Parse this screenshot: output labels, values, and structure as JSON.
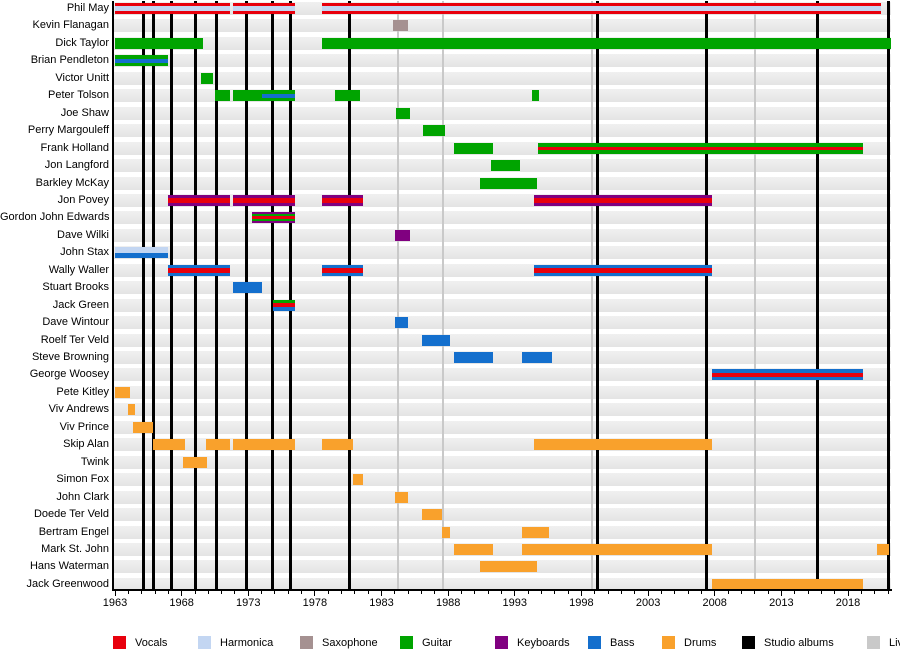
{
  "chart_data": {
    "type": "timeline",
    "title": "",
    "axis": {
      "start_year": 1963,
      "end_year": 2022,
      "major_tick_labels": [
        "1963",
        "1968",
        "1973",
        "1978",
        "1983",
        "1988",
        "1993",
        "1998",
        "2003",
        "2008",
        "2013",
        "2018"
      ],
      "minor_tick_every_years": 1
    },
    "colors": {
      "vocals": "#e8000d",
      "harmonica": "#c3d6f2",
      "saxophone": "#a59191",
      "guitar": "#00a400",
      "keyboards": "#800080",
      "bass": "#146fcd",
      "drums": "#f9a12c",
      "studio": "#000000",
      "live": "#c9c9c9",
      "row_band_top": "#f0f0f0",
      "row_band_bottom": "#e4e4e4"
    },
    "legend": [
      {
        "label": "Vocals",
        "color": "vocals"
      },
      {
        "label": "Harmonica",
        "color": "harmonica"
      },
      {
        "label": "Saxophone",
        "color": "saxophone"
      },
      {
        "label": "Guitar",
        "color": "guitar"
      },
      {
        "label": "Keyboards",
        "color": "keyboards"
      },
      {
        "label": "Bass",
        "color": "bass"
      },
      {
        "label": "Drums",
        "color": "drums"
      },
      {
        "label": "Studio albums",
        "color": "studio"
      },
      {
        "label": "Live albums",
        "color": "live"
      }
    ],
    "studio_album_years": [
      1965.1,
      1965.85,
      1967.2,
      1969.0,
      1970.6,
      1972.9,
      1974.8,
      1976.2,
      1980.6,
      1999.2,
      2007.4,
      2015.7,
      2021.0
    ],
    "live_album_years": [
      1984.2,
      1987.6,
      1998.8,
      2011.0
    ],
    "members": [
      {
        "name": "Phil May",
        "segments": [
          {
            "from": 1963.0,
            "to": 1971.6,
            "layers": [
              [
                "vocals",
                3
              ],
              [
                "harmonica",
                4
              ],
              [
                "vocals",
                3
              ]
            ]
          },
          {
            "from": 1971.85,
            "to": 1976.5,
            "layers": [
              [
                "vocals",
                3
              ],
              [
                "harmonica",
                4
              ],
              [
                "vocals",
                3
              ]
            ]
          },
          {
            "from": 1978.5,
            "to": 2020.5,
            "layers": [
              [
                "vocals",
                3
              ],
              [
                "harmonica",
                4
              ],
              [
                "vocals",
                3
              ]
            ]
          }
        ]
      },
      {
        "name": "Kevin Flanagan",
        "segments": [
          {
            "from": 1983.85,
            "to": 1985.0,
            "layers": [
              [
                "saxophone",
                1
              ]
            ]
          }
        ]
      },
      {
        "name": "Dick Taylor",
        "segments": [
          {
            "from": 1963.0,
            "to": 1969.6,
            "layers": [
              [
                "guitar",
                1
              ]
            ]
          },
          {
            "from": 1978.5,
            "to": 2021.2,
            "layers": [
              [
                "guitar",
                1
              ]
            ]
          }
        ]
      },
      {
        "name": "Brian Pendleton",
        "segments": [
          {
            "from": 1963.0,
            "to": 1967.0,
            "layers": [
              [
                "guitar",
                3
              ],
              [
                "bass",
                4
              ],
              [
                "guitar",
                3
              ]
            ]
          }
        ]
      },
      {
        "name": "Victor Unitt",
        "segments": [
          {
            "from": 1969.45,
            "to": 1970.35,
            "layers": [
              [
                "guitar",
                1
              ]
            ]
          }
        ]
      },
      {
        "name": "Peter Tolson",
        "segments": [
          {
            "from": 1970.5,
            "to": 1971.6,
            "layers": [
              [
                "guitar",
                1
              ]
            ]
          },
          {
            "from": 1971.85,
            "to": 1976.5,
            "layers": [
              [
                "guitar",
                1
              ]
            ]
          },
          {
            "from": 1974.0,
            "to": 1976.5,
            "layers": [
              [
                "bass",
                1
              ]
            ],
            "thin": true
          },
          {
            "from": 1979.5,
            "to": 1981.4,
            "layers": [
              [
                "guitar",
                1
              ]
            ]
          },
          {
            "from": 1994.3,
            "to": 1994.8,
            "layers": [
              [
                "guitar",
                1
              ]
            ]
          }
        ]
      },
      {
        "name": "Joe Shaw",
        "segments": [
          {
            "from": 1984.05,
            "to": 1985.1,
            "layers": [
              [
                "guitar",
                1
              ]
            ]
          }
        ]
      },
      {
        "name": "Perry Margouleff",
        "segments": [
          {
            "from": 1986.1,
            "to": 1987.75,
            "layers": [
              [
                "guitar",
                1
              ]
            ]
          }
        ]
      },
      {
        "name": "Frank Holland",
        "segments": [
          {
            "from": 1988.4,
            "to": 1991.35,
            "layers": [
              [
                "guitar",
                1
              ]
            ]
          },
          {
            "from": 1994.7,
            "to": 2019.1,
            "layers": [
              [
                "guitar",
                4
              ],
              [
                "vocals",
                3
              ],
              [
                "guitar",
                4
              ]
            ]
          }
        ]
      },
      {
        "name": "Jon Langford",
        "segments": [
          {
            "from": 1991.2,
            "to": 1993.4,
            "layers": [
              [
                "guitar",
                1
              ]
            ]
          }
        ]
      },
      {
        "name": "Barkley McKay",
        "segments": [
          {
            "from": 1990.4,
            "to": 1994.65,
            "layers": [
              [
                "guitar",
                1
              ]
            ]
          }
        ]
      },
      {
        "name": "Jon Povey",
        "segments": [
          {
            "from": 1967.0,
            "to": 1971.6,
            "layers": [
              [
                "keyboards",
                3
              ],
              [
                "vocals",
                4
              ],
              [
                "keyboards",
                3
              ]
            ]
          },
          {
            "from": 1971.85,
            "to": 1976.5,
            "layers": [
              [
                "keyboards",
                3
              ],
              [
                "vocals",
                4
              ],
              [
                "keyboards",
                3
              ]
            ]
          },
          {
            "from": 1978.5,
            "to": 1981.6,
            "layers": [
              [
                "keyboards",
                3
              ],
              [
                "vocals",
                4
              ],
              [
                "keyboards",
                3
              ]
            ]
          },
          {
            "from": 1994.4,
            "to": 2007.8,
            "layers": [
              [
                "keyboards",
                3
              ],
              [
                "vocals",
                4
              ],
              [
                "keyboards",
                3
              ]
            ]
          }
        ]
      },
      {
        "name": "Gordon John Edwards",
        "segments": [
          {
            "from": 1973.3,
            "to": 1976.5,
            "layers": [
              [
                "keyboards",
                2
              ],
              [
                "guitar",
                2
              ],
              [
                "vocals",
                3
              ],
              [
                "guitar",
                2
              ],
              [
                "keyboards",
                2
              ]
            ]
          }
        ]
      },
      {
        "name": "Dave Wilki",
        "segments": [
          {
            "from": 1984.0,
            "to": 1985.1,
            "layers": [
              [
                "keyboards",
                1
              ]
            ]
          }
        ]
      },
      {
        "name": "John Stax",
        "segments": [
          {
            "from": 1963.0,
            "to": 1967.0,
            "layers": [
              [
                "harmonica",
                1
              ],
              [
                "bass",
                1
              ]
            ]
          }
        ]
      },
      {
        "name": "Wally Waller",
        "segments": [
          {
            "from": 1967.0,
            "to": 1971.6,
            "layers": [
              [
                "bass",
                3
              ],
              [
                "vocals",
                4
              ],
              [
                "bass",
                3
              ]
            ]
          },
          {
            "from": 1978.5,
            "to": 1981.6,
            "layers": [
              [
                "bass",
                3
              ],
              [
                "vocals",
                4
              ],
              [
                "bass",
                3
              ]
            ]
          },
          {
            "from": 1994.4,
            "to": 2007.8,
            "layers": [
              [
                "bass",
                3
              ],
              [
                "vocals",
                4
              ],
              [
                "bass",
                3
              ]
            ]
          }
        ]
      },
      {
        "name": "Stuart Brooks",
        "segments": [
          {
            "from": 1971.85,
            "to": 1974.0,
            "layers": [
              [
                "bass",
                1
              ]
            ]
          }
        ]
      },
      {
        "name": "Jack Green",
        "segments": [
          {
            "from": 1974.85,
            "to": 1976.5,
            "layers": [
              [
                "guitar",
                3
              ],
              [
                "vocals",
                4
              ],
              [
                "bass",
                3
              ]
            ]
          }
        ]
      },
      {
        "name": "Dave Wintour",
        "segments": [
          {
            "from": 1984.0,
            "to": 1985.0,
            "layers": [
              [
                "bass",
                1
              ]
            ]
          }
        ]
      },
      {
        "name": "Roelf Ter Veld",
        "segments": [
          {
            "from": 1986.0,
            "to": 1988.1,
            "layers": [
              [
                "bass",
                1
              ]
            ]
          }
        ]
      },
      {
        "name": "Steve Browning",
        "segments": [
          {
            "from": 1988.4,
            "to": 1991.35,
            "layers": [
              [
                "bass",
                1
              ]
            ]
          },
          {
            "from": 1993.5,
            "to": 1995.8,
            "layers": [
              [
                "bass",
                1
              ]
            ]
          }
        ]
      },
      {
        "name": "George Woosey",
        "segments": [
          {
            "from": 2007.8,
            "to": 2019.1,
            "layers": [
              [
                "bass",
                3
              ],
              [
                "vocals",
                4
              ],
              [
                "bass",
                3
              ]
            ]
          }
        ]
      },
      {
        "name": "Pete Kitley",
        "segments": [
          {
            "from": 1963.0,
            "to": 1964.1,
            "layers": [
              [
                "drums",
                1
              ]
            ]
          }
        ]
      },
      {
        "name": "Viv Andrews",
        "segments": [
          {
            "from": 1964.0,
            "to": 1964.5,
            "layers": [
              [
                "drums",
                1
              ]
            ]
          }
        ]
      },
      {
        "name": "Viv Prince",
        "segments": [
          {
            "from": 1964.35,
            "to": 1965.85,
            "layers": [
              [
                "drums",
                1
              ]
            ]
          }
        ]
      },
      {
        "name": "Skip Alan",
        "segments": [
          {
            "from": 1965.85,
            "to": 1968.25,
            "layers": [
              [
                "drums",
                1
              ]
            ]
          },
          {
            "from": 1969.85,
            "to": 1971.6,
            "layers": [
              [
                "drums",
                1
              ]
            ]
          },
          {
            "from": 1971.85,
            "to": 1976.5,
            "layers": [
              [
                "drums",
                1
              ]
            ]
          },
          {
            "from": 1978.5,
            "to": 1980.85,
            "layers": [
              [
                "drums",
                1
              ]
            ]
          },
          {
            "from": 1994.4,
            "to": 2007.8,
            "layers": [
              [
                "drums",
                1
              ]
            ]
          }
        ]
      },
      {
        "name": "Twink",
        "segments": [
          {
            "from": 1968.1,
            "to": 1969.9,
            "layers": [
              [
                "drums",
                1
              ]
            ]
          }
        ]
      },
      {
        "name": "Simon Fox",
        "segments": [
          {
            "from": 1980.85,
            "to": 1981.6,
            "layers": [
              [
                "drums",
                1
              ]
            ]
          }
        ]
      },
      {
        "name": "John Clark",
        "segments": [
          {
            "from": 1984.0,
            "to": 1985.0,
            "layers": [
              [
                "drums",
                1
              ]
            ]
          }
        ]
      },
      {
        "name": "Doede Ter Veld",
        "segments": [
          {
            "from": 1986.0,
            "to": 1987.5,
            "layers": [
              [
                "drums",
                1
              ]
            ]
          }
        ]
      },
      {
        "name": "Bertram Engel",
        "segments": [
          {
            "from": 1987.5,
            "to": 1988.1,
            "layers": [
              [
                "drums",
                1
              ]
            ]
          },
          {
            "from": 1993.55,
            "to": 1995.6,
            "layers": [
              [
                "drums",
                1
              ]
            ]
          }
        ]
      },
      {
        "name": "Mark St. John",
        "segments": [
          {
            "from": 1988.4,
            "to": 1991.35,
            "layers": [
              [
                "drums",
                1
              ]
            ]
          },
          {
            "from": 1993.55,
            "to": 2007.8,
            "layers": [
              [
                "drums",
                1
              ]
            ]
          },
          {
            "from": 2020.2,
            "to": 2021.1,
            "layers": [
              [
                "drums",
                1
              ]
            ]
          }
        ]
      },
      {
        "name": "Hans Waterman",
        "segments": [
          {
            "from": 1990.4,
            "to": 1994.65,
            "layers": [
              [
                "drums",
                1
              ]
            ]
          }
        ]
      },
      {
        "name": "Jack Greenwood",
        "segments": [
          {
            "from": 2007.8,
            "to": 2019.1,
            "layers": [
              [
                "drums",
                1
              ]
            ]
          }
        ]
      }
    ]
  }
}
